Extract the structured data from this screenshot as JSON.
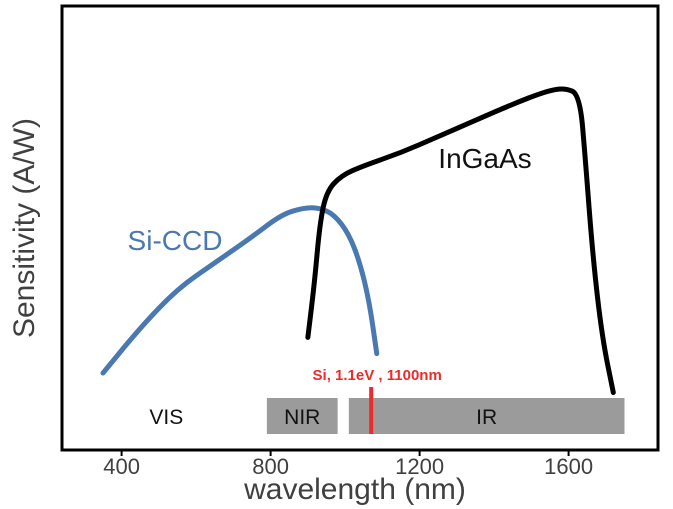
{
  "chart_data": {
    "type": "line",
    "xlabel": "wavelength (nm)",
    "ylabel": "Sensitivity (A/W)",
    "xlim": [
      240,
      1840
    ],
    "ylim": [
      0,
      100
    ],
    "x_ticks": [
      "400",
      "800",
      "1200",
      "1600"
    ],
    "x_tick_values": [
      400,
      800,
      1200,
      1600
    ],
    "grid": false,
    "series": [
      {
        "name": "Si-CCD",
        "color": "#4a78b0",
        "points": [
          [
            350,
            4
          ],
          [
            450,
            18
          ],
          [
            550,
            30
          ],
          [
            650,
            38
          ],
          [
            750,
            46
          ],
          [
            830,
            53
          ],
          [
            890,
            55
          ],
          [
            930,
            55
          ],
          [
            970,
            53
          ],
          [
            1010,
            47
          ],
          [
            1040,
            38
          ],
          [
            1065,
            26
          ],
          [
            1085,
            10
          ]
        ]
      },
      {
        "name": "InGaAs",
        "color": "#000000",
        "points": [
          [
            900,
            15
          ],
          [
            918,
            32
          ],
          [
            932,
            50
          ],
          [
            950,
            60
          ],
          [
            990,
            65
          ],
          [
            1050,
            68
          ],
          [
            1150,
            72
          ],
          [
            1250,
            77
          ],
          [
            1350,
            82
          ],
          [
            1450,
            87
          ],
          [
            1540,
            91
          ],
          [
            1590,
            92
          ],
          [
            1630,
            90
          ],
          [
            1645,
            70
          ],
          [
            1665,
            40
          ],
          [
            1690,
            15
          ],
          [
            1720,
            -2
          ]
        ]
      }
    ],
    "bands": [
      {
        "label": "VIS",
        "start": 250,
        "end": 790,
        "filled": false
      },
      {
        "label": "NIR",
        "start": 790,
        "end": 980,
        "filled": true
      },
      {
        "label": "IR",
        "start": 1010,
        "end": 1750,
        "filled": true
      }
    ],
    "band_color": "#9b9b9b",
    "marker": {
      "x": 1070,
      "label": "Si, 1.1eV , 1100nm",
      "color": "#ee2a2a"
    }
  }
}
